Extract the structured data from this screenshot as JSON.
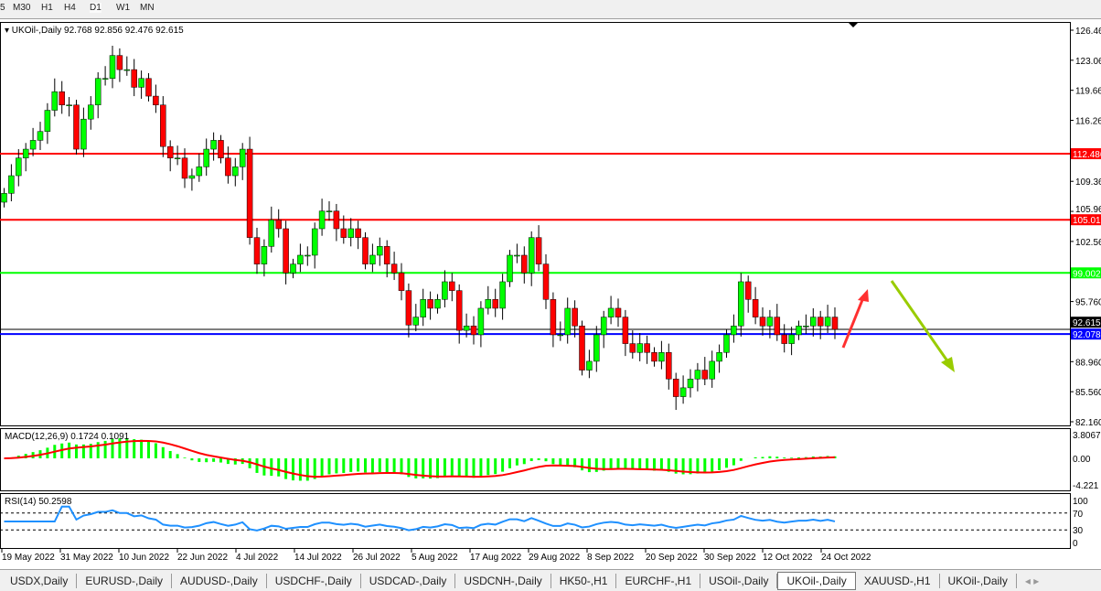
{
  "toolbar": {
    "timeframes": [
      "5",
      "M30",
      "H1",
      "H4",
      "D1",
      "W1",
      "MN"
    ],
    "active": "D1"
  },
  "chart": {
    "symbol_label": "UKOil-,Daily",
    "ohlc": "92.768 92.856 92.476 92.615"
  },
  "price_axis": [
    "126.460",
    "123.060",
    "119.660",
    "116.260",
    "109.360",
    "105.960",
    "102.560",
    "95.760",
    "88.960",
    "85.560",
    "82.160"
  ],
  "levels": [
    {
      "value": 112.486,
      "label": "112.486",
      "color": "#ff0000"
    },
    {
      "value": 105.015,
      "label": "105.015",
      "color": "#ff0000"
    },
    {
      "value": 99.002,
      "label": "99.002",
      "color": "#00ff00"
    },
    {
      "value": 92.078,
      "label": "92.078",
      "color": "#0000ff"
    },
    {
      "value": 92.615,
      "label": "92.615",
      "color": "#000000"
    }
  ],
  "macd": {
    "label": "MACD(12,26,9) 0.1724 0.1091",
    "axis": [
      "3.8067",
      "0.00",
      "-4.221"
    ]
  },
  "rsi": {
    "label": "RSI(14) 50.2598",
    "axis": [
      "100",
      "70",
      "30",
      "0"
    ]
  },
  "date_axis": [
    "19 May 2022",
    "31 May 2022",
    "10 Jun 2022",
    "22 Jun 2022",
    "4 Jul 2022",
    "14 Jul 2022",
    "26 Jul 2022",
    "5 Aug 2022",
    "17 Aug 2022",
    "29 Aug 2022",
    "8 Sep 2022",
    "20 Sep 2022",
    "30 Sep 2022",
    "12 Oct 2022",
    "24 Oct 2022"
  ],
  "tabs": [
    "USDX,Daily",
    "EURUSD-,Daily",
    "AUDUSD-,Daily",
    "USDCHF-,Daily",
    "USDCAD-,Daily",
    "USDCNH-,Daily",
    "HK50-,H1",
    "EURCHF-,H1",
    "USOil-,Daily",
    "UKOil-,Daily",
    "XAUUSD-,H1",
    "UKOil-,Daily"
  ],
  "active_tab": "UKOil-,Daily",
  "colors": {
    "bull": "#00ff00",
    "bear": "#ff0000",
    "rsi": "#1e90ff",
    "signal": "#ff0000",
    "arrow_up": "#ff3030",
    "arrow_down": "#99cc00"
  },
  "chart_data": {
    "type": "candlestick",
    "price_range": [
      82.16,
      126.46
    ],
    "closes": [
      108,
      110,
      112,
      113,
      114,
      115,
      117.4,
      119.5,
      118,
      118,
      113,
      116.4,
      118,
      121,
      121,
      123.6,
      122,
      122,
      120,
      121,
      119,
      118,
      113.3,
      112,
      112,
      109.7,
      110,
      111,
      113,
      114,
      112,
      110,
      111,
      113,
      103,
      100,
      102,
      105,
      104,
      99,
      100,
      101,
      101,
      104,
      106,
      106,
      104,
      103,
      104,
      103,
      100,
      101,
      102,
      100,
      99,
      97,
      93.1,
      94,
      96,
      95,
      96,
      98,
      97,
      92.5,
      93,
      92,
      95,
      96,
      95,
      98,
      101,
      101,
      99,
      103,
      100,
      96,
      92,
      92,
      95,
      93,
      88,
      89,
      92,
      94,
      95,
      94,
      91,
      90,
      91,
      90,
      89,
      90,
      87,
      85,
      86,
      87,
      88,
      87,
      89,
      90,
      92,
      93,
      98,
      96,
      94,
      93,
      94,
      92,
      91,
      92,
      93,
      93,
      94,
      93,
      94,
      92.615
    ]
  }
}
